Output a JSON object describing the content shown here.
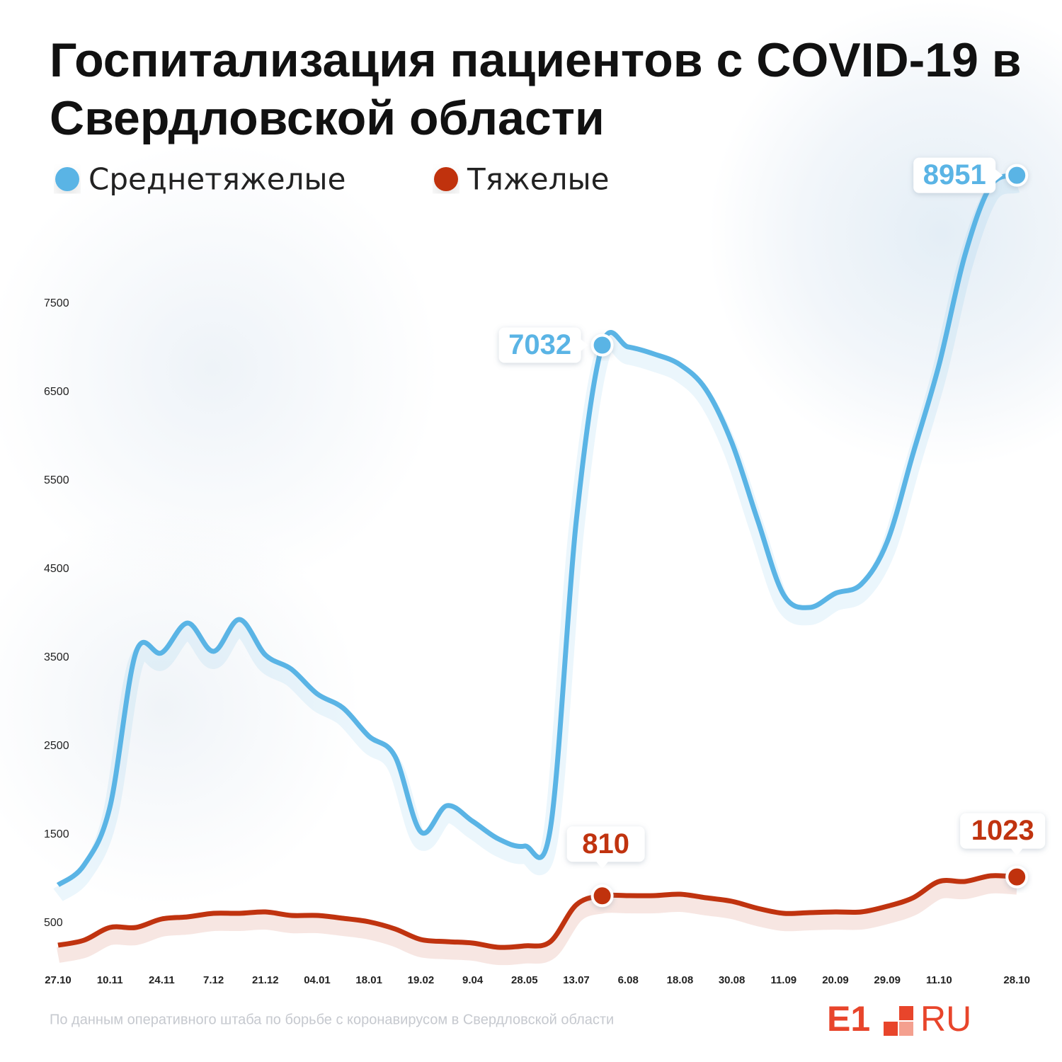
{
  "chart_data": {
    "type": "line",
    "title": "Госпитализация пациентов с COVID-19 в Свердловской области",
    "categories": [
      "27.10",
      null,
      "10.11",
      null,
      "24.11",
      null,
      "7.12",
      null,
      "21.12",
      null,
      "04.01",
      null,
      "18.01",
      null,
      "19.02",
      null,
      "9.04",
      null,
      "28.05",
      null,
      "13.07",
      null,
      "6.08",
      null,
      "18.08",
      null,
      "30.08",
      null,
      "11.09",
      null,
      "20.09",
      null,
      "29.09",
      null,
      "11.10",
      null,
      null,
      "28.10"
    ],
    "series": [
      {
        "name": "Среднетяжелые",
        "color": "#5ab4e5",
        "labeled_points": [
          21,
          37
        ],
        "values": [
          932,
          1156,
          1812,
          3556,
          3556,
          3892,
          3572,
          3932,
          3532,
          3372,
          3092,
          2932,
          2612,
          2388,
          1532,
          1828,
          1652,
          1452,
          1372,
          1572,
          5052,
          7032,
          7012,
          6932,
          6812,
          6532,
          5932,
          5052,
          4212,
          4068,
          4228,
          4332,
          4812,
          5812,
          6812,
          8052,
          8836,
          8951
        ]
      },
      {
        "name": "Тяжелые",
        "color": "#c0330f",
        "labeled_points": [
          21,
          37
        ],
        "values": [
          252,
          308,
          452,
          452,
          548,
          572,
          612,
          612,
          628,
          588,
          588,
          556,
          516,
          436,
          316,
          292,
          276,
          228,
          244,
          292,
          708,
          810,
          812,
          812,
          828,
          788,
          748,
          668,
          612,
          620,
          628,
          628,
          692,
          788,
          972,
          972,
          1036,
          1023
        ]
      }
    ],
    "ylim": [
      0,
      9500
    ],
    "yticks": [
      500,
      1500,
      2500,
      3500,
      4500,
      5500,
      6500,
      7500
    ],
    "grid": false,
    "source": "По данным оперативного штаба по борьбе с коронавирусом в Свердловской области",
    "logo": {
      "left": "E1",
      "right": "RU"
    }
  }
}
